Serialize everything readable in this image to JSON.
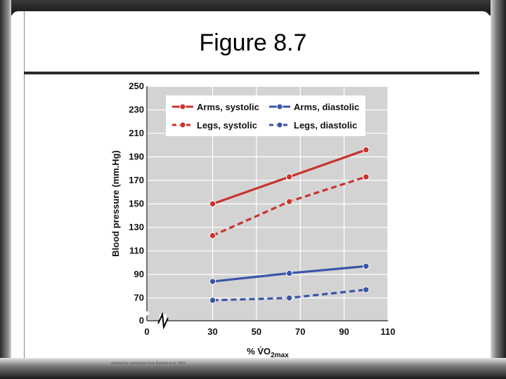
{
  "slide": {
    "title": "Figure 8.7"
  },
  "chart_data": {
    "type": "line",
    "title": "",
    "xlabel": "% V̇O2max",
    "xlabel_parts": {
      "main": "% V̇O",
      "sub": "2max"
    },
    "ylabel": "Blood pressure (mm.Hg)",
    "xlim": [
      0,
      110
    ],
    "ylim": [
      0,
      250
    ],
    "y_axis_break": true,
    "y_break_range": [
      0,
      50
    ],
    "x_ticks": [
      0,
      30,
      50,
      70,
      90,
      110
    ],
    "y_ticks": [
      0,
      70,
      90,
      110,
      130,
      150,
      170,
      190,
      210,
      230,
      250
    ],
    "grid": true,
    "legend_position": "top",
    "series": [
      {
        "name": "Arms, systolic",
        "x": [
          30,
          65,
          100
        ],
        "y": [
          150,
          173,
          196
        ],
        "color": "#c8332d",
        "style": "solid"
      },
      {
        "name": "Arms, diastolic",
        "x": [
          30,
          65,
          100
        ],
        "y": [
          84,
          91,
          97
        ],
        "color": "#3a55a8",
        "style": "solid"
      },
      {
        "name": "Legs, systolic",
        "x": [
          30,
          65,
          100
        ],
        "y": [
          123,
          152,
          173
        ],
        "color": "#c8332d",
        "style": "dashed"
      },
      {
        "name": "Legs, diastolic",
        "x": [
          30,
          65,
          100
        ],
        "y": [
          68,
          70,
          77
        ],
        "color": "#3a55a8",
        "style": "dashed"
      }
    ],
    "credit": "Adapted by permission from Åstrand et al. 1965."
  }
}
